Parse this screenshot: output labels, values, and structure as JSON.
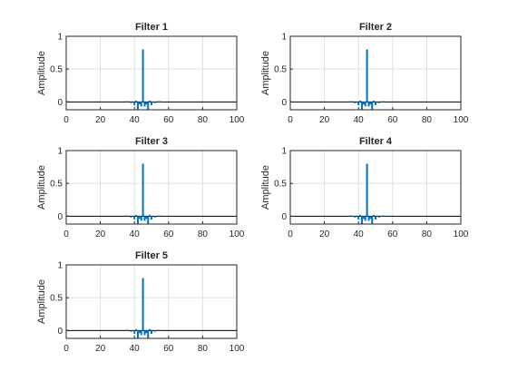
{
  "colors": {
    "series": "#0072BD",
    "axis": "#262626",
    "grid": "#dfdfdf",
    "baseline": "#000000"
  },
  "chart_data": [
    {
      "type": "stem",
      "title": "Filter 1",
      "xlabel": "",
      "ylabel": "Amplitude",
      "xlim": [
        0,
        100
      ],
      "ylim": [
        -0.12,
        1
      ],
      "xticks": [
        0,
        20,
        40,
        60,
        80,
        100
      ],
      "yticks": [
        0,
        0.5,
        1
      ],
      "grid": true,
      "x": [
        35,
        36,
        37,
        38,
        39,
        40,
        41,
        42,
        43,
        44,
        45,
        46,
        47,
        48,
        49,
        50,
        51,
        52,
        53,
        54,
        55,
        56,
        57
      ],
      "y": [
        0.01,
        0.01,
        0.0,
        -0.02,
        0.0,
        -0.05,
        0.02,
        -0.12,
        -0.04,
        -0.07,
        0.8,
        -0.07,
        -0.04,
        -0.12,
        0.02,
        -0.05,
        0.0,
        -0.02,
        0.0,
        0.01,
        0.01,
        0.0,
        0.0
      ]
    },
    {
      "type": "stem",
      "title": "Filter 2",
      "xlabel": "",
      "ylabel": "Amplitude",
      "xlim": [
        0,
        100
      ],
      "ylim": [
        -0.12,
        1
      ],
      "xticks": [
        0,
        20,
        40,
        60,
        80,
        100
      ],
      "yticks": [
        0,
        0.5,
        1
      ],
      "grid": true,
      "x": [
        35,
        36,
        37,
        38,
        39,
        40,
        41,
        42,
        43,
        44,
        45,
        46,
        47,
        48,
        49,
        50,
        51,
        52,
        53,
        54,
        55,
        56,
        57
      ],
      "y": [
        0.01,
        0.01,
        0.0,
        -0.02,
        0.0,
        -0.05,
        0.02,
        -0.12,
        -0.04,
        -0.07,
        0.8,
        -0.07,
        -0.04,
        -0.12,
        0.02,
        -0.05,
        0.0,
        -0.02,
        0.0,
        0.01,
        0.01,
        0.0,
        0.0
      ]
    },
    {
      "type": "stem",
      "title": "Filter 3",
      "xlabel": "",
      "ylabel": "Amplitude",
      "xlim": [
        0,
        100
      ],
      "ylim": [
        -0.12,
        1
      ],
      "xticks": [
        0,
        20,
        40,
        60,
        80,
        100
      ],
      "yticks": [
        0,
        0.5,
        1
      ],
      "grid": true,
      "x": [
        35,
        36,
        37,
        38,
        39,
        40,
        41,
        42,
        43,
        44,
        45,
        46,
        47,
        48,
        49,
        50,
        51,
        52,
        53,
        54,
        55,
        56,
        57
      ],
      "y": [
        0.01,
        0.01,
        0.0,
        -0.02,
        0.0,
        -0.05,
        0.02,
        -0.12,
        -0.04,
        -0.07,
        0.8,
        -0.07,
        -0.04,
        -0.12,
        0.02,
        -0.05,
        0.0,
        -0.02,
        0.0,
        0.01,
        0.01,
        0.0,
        0.0
      ]
    },
    {
      "type": "stem",
      "title": "Filter 4",
      "xlabel": "",
      "ylabel": "Amplitude",
      "xlim": [
        0,
        100
      ],
      "ylim": [
        -0.12,
        1
      ],
      "xticks": [
        0,
        20,
        40,
        60,
        80,
        100
      ],
      "yticks": [
        0,
        0.5,
        1
      ],
      "grid": true,
      "x": [
        35,
        36,
        37,
        38,
        39,
        40,
        41,
        42,
        43,
        44,
        45,
        46,
        47,
        48,
        49,
        50,
        51,
        52,
        53,
        54,
        55,
        56,
        57
      ],
      "y": [
        0.01,
        0.01,
        0.0,
        -0.02,
        0.0,
        -0.05,
        0.02,
        -0.12,
        -0.04,
        -0.07,
        0.8,
        -0.07,
        -0.04,
        -0.12,
        0.02,
        -0.05,
        0.0,
        -0.02,
        0.0,
        0.01,
        0.01,
        0.0,
        0.0
      ]
    },
    {
      "type": "stem",
      "title": "Filter 5",
      "xlabel": "",
      "ylabel": "Amplitude",
      "xlim": [
        0,
        100
      ],
      "ylim": [
        -0.12,
        1
      ],
      "xticks": [
        0,
        20,
        40,
        60,
        80,
        100
      ],
      "yticks": [
        0,
        0.5,
        1
      ],
      "grid": true,
      "x": [
        35,
        36,
        37,
        38,
        39,
        40,
        41,
        42,
        43,
        44,
        45,
        46,
        47,
        48,
        49,
        50,
        51,
        52,
        53,
        54,
        55,
        56,
        57
      ],
      "y": [
        0.01,
        0.01,
        0.0,
        -0.02,
        0.0,
        -0.05,
        0.02,
        -0.12,
        -0.04,
        -0.07,
        0.8,
        -0.07,
        -0.04,
        -0.12,
        0.02,
        -0.05,
        0.0,
        -0.02,
        0.0,
        0.01,
        0.01,
        0.0,
        0.0
      ]
    }
  ]
}
